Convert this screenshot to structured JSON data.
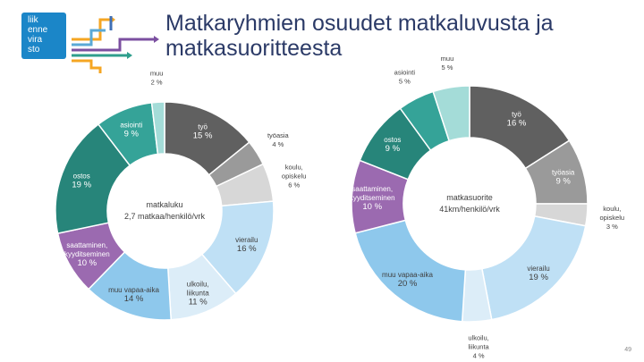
{
  "logo": {
    "lines": [
      "liik",
      "enne",
      "vira",
      "sto"
    ],
    "colors": [
      "#1b86c8",
      "#f5a623",
      "#5aa9d6",
      "#7b4fa0",
      "#2e9e8c",
      "#3f6fb5"
    ]
  },
  "slide": {
    "title_line1": "Matkaryhmien osuudet matkaluvusta ja",
    "title_line2": "matkasuoritteesta",
    "page_number": "49"
  },
  "chart_data": [
    {
      "type": "pie",
      "subtype": "donut",
      "center_label_line1": "matkaluku",
      "center_label_line2": "2,7 matkaa/henkilö/vrk",
      "slices": [
        {
          "name": "työ",
          "value": 15,
          "label": "15 %",
          "color": "#606060",
          "text_color": "#ffffff"
        },
        {
          "name": "työasia",
          "value": 4,
          "label": "4 %",
          "color": "#9a9a9a",
          "text_color": "#404040"
        },
        {
          "name": "koulu, opiskelu",
          "value": 6,
          "label": "6 %",
          "color": "#d7d7d7",
          "text_color": "#404040"
        },
        {
          "name": "vierailu",
          "value": 16,
          "label": "16 %",
          "color": "#bfe0f5",
          "text_color": "#404040"
        },
        {
          "name": "ulkoilu, liikunta",
          "value": 11,
          "label": "11 %",
          "color": "#dcedf8",
          "text_color": "#404040"
        },
        {
          "name": "muu vapaa-aika",
          "value": 14,
          "label": "14 %",
          "color": "#8ec8ec",
          "text_color": "#404040"
        },
        {
          "name": "saattaminen, kyyditseminen",
          "value": 10,
          "label": "10 %",
          "color": "#9b6ab0",
          "text_color": "#ffffff"
        },
        {
          "name": "ostos",
          "value": 19,
          "label": "19 %",
          "color": "#27857a",
          "text_color": "#ffffff"
        },
        {
          "name": "asiointi",
          "value": 9,
          "label": "9 %",
          "color": "#35a398",
          "text_color": "#ffffff"
        },
        {
          "name": "muu",
          "value": 2,
          "label": "2 %",
          "color": "#a4dcd8",
          "text_color": "#404040"
        }
      ]
    },
    {
      "type": "pie",
      "subtype": "donut",
      "center_label_line1": "matkasuorite",
      "center_label_line2": "41km/henkilö/vrk",
      "slices": [
        {
          "name": "työ",
          "value": 16,
          "label": "16 %",
          "color": "#606060",
          "text_color": "#ffffff"
        },
        {
          "name": "työasia",
          "value": 9,
          "label": "9 %",
          "color": "#9a9a9a",
          "text_color": "#ffffff"
        },
        {
          "name": "koulu, opiskelu",
          "value": 3,
          "label": "3 %",
          "color": "#d7d7d7",
          "text_color": "#404040"
        },
        {
          "name": "vierailu",
          "value": 19,
          "label": "19 %",
          "color": "#bfe0f5",
          "text_color": "#404040"
        },
        {
          "name": "ulkoilu, liikunta",
          "value": 4,
          "label": "4 %",
          "color": "#dcedf8",
          "text_color": "#404040"
        },
        {
          "name": "muu vapaa-aika",
          "value": 20,
          "label": "20 %",
          "color": "#8ec8ec",
          "text_color": "#404040"
        },
        {
          "name": "saattaminen, kyyditseminen",
          "value": 10,
          "label": "10 %",
          "color": "#9b6ab0",
          "text_color": "#ffffff"
        },
        {
          "name": "ostos",
          "value": 9,
          "label": "9 %",
          "color": "#27857a",
          "text_color": "#ffffff"
        },
        {
          "name": "asiointi",
          "value": 5,
          "label": "5 %",
          "color": "#35a398",
          "text_color": "#ffffff"
        },
        {
          "name": "muu",
          "value": 5,
          "label": "5 %",
          "color": "#a4dcd8",
          "text_color": "#404040"
        }
      ]
    }
  ]
}
